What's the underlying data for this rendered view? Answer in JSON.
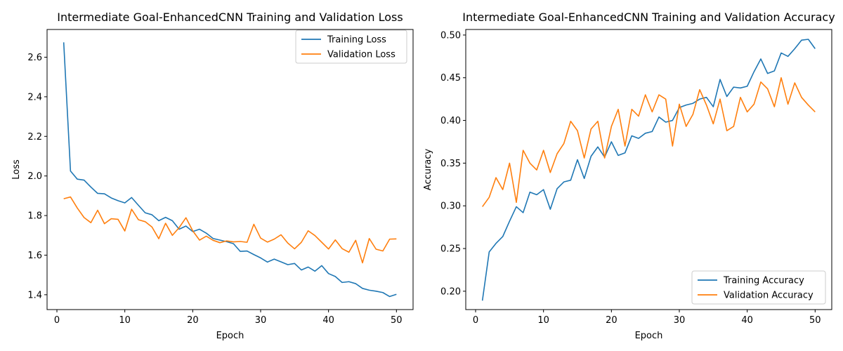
{
  "chart_data": [
    {
      "type": "line",
      "title": "Intermediate Goal-EnhancedCNN Training and Validation Loss",
      "xlabel": "Epoch",
      "ylabel": "Loss",
      "xlim": [
        -1.45,
        52.45
      ],
      "ylim": [
        1.325,
        2.74
      ],
      "xticks": [
        0,
        10,
        20,
        30,
        40,
        50
      ],
      "yticks": [
        1.4,
        1.6,
        1.8,
        2.0,
        2.2,
        2.4,
        2.6
      ],
      "ytick_decimals": 1,
      "grid": false,
      "legend_position": "upper-right",
      "x": [
        1,
        2,
        3,
        4,
        5,
        6,
        7,
        8,
        9,
        10,
        11,
        12,
        13,
        14,
        15,
        16,
        17,
        18,
        19,
        20,
        21,
        22,
        23,
        24,
        25,
        26,
        27,
        28,
        29,
        30,
        31,
        32,
        33,
        34,
        35,
        36,
        37,
        38,
        39,
        40,
        41,
        42,
        43,
        44,
        45,
        46,
        47,
        48,
        49,
        50
      ],
      "series": [
        {
          "name": "Training Loss",
          "color": "#1f77b4",
          "values": [
            2.675,
            2.025,
            1.984,
            1.979,
            1.944,
            1.912,
            1.91,
            1.889,
            1.875,
            1.864,
            1.891,
            1.852,
            1.814,
            1.804,
            1.774,
            1.791,
            1.774,
            1.731,
            1.747,
            1.719,
            1.731,
            1.711,
            1.684,
            1.676,
            1.668,
            1.658,
            1.619,
            1.621,
            1.603,
            1.586,
            1.565,
            1.58,
            1.566,
            1.552,
            1.558,
            1.525,
            1.54,
            1.519,
            1.547,
            1.507,
            1.492,
            1.462,
            1.466,
            1.456,
            1.432,
            1.423,
            1.418,
            1.411,
            1.391,
            1.402
          ]
        },
        {
          "name": "Validation Loss",
          "color": "#ff7f0e",
          "values": [
            1.885,
            1.894,
            1.838,
            1.79,
            1.764,
            1.827,
            1.759,
            1.784,
            1.781,
            1.722,
            1.832,
            1.779,
            1.769,
            1.742,
            1.683,
            1.761,
            1.7,
            1.739,
            1.789,
            1.723,
            1.676,
            1.696,
            1.675,
            1.663,
            1.672,
            1.667,
            1.669,
            1.665,
            1.756,
            1.686,
            1.666,
            1.681,
            1.703,
            1.661,
            1.632,
            1.665,
            1.723,
            1.699,
            1.665,
            1.631,
            1.677,
            1.633,
            1.615,
            1.675,
            1.561,
            1.684,
            1.63,
            1.621,
            1.681,
            1.682
          ]
        }
      ]
    },
    {
      "type": "line",
      "title": "Intermediate Goal-EnhancedCNN Training and Validation Accuracy",
      "xlabel": "Epoch",
      "ylabel": "Accuracy",
      "xlim": [
        -1.45,
        52.45
      ],
      "ylim": [
        0.1785,
        0.5065
      ],
      "xticks": [
        0,
        10,
        20,
        30,
        40,
        50
      ],
      "yticks": [
        0.2,
        0.25,
        0.3,
        0.35,
        0.4,
        0.45,
        0.5
      ],
      "ytick_decimals": 2,
      "grid": false,
      "legend_position": "lower-right",
      "x": [
        1,
        2,
        3,
        4,
        5,
        6,
        7,
        8,
        9,
        10,
        11,
        12,
        13,
        14,
        15,
        16,
        17,
        18,
        19,
        20,
        21,
        22,
        23,
        24,
        25,
        26,
        27,
        28,
        29,
        30,
        31,
        32,
        33,
        34,
        35,
        36,
        37,
        38,
        39,
        40,
        41,
        42,
        43,
        44,
        45,
        46,
        47,
        48,
        49,
        50
      ],
      "series": [
        {
          "name": "Training Accuracy",
          "color": "#1f77b4",
          "values": [
            0.189,
            0.246,
            0.256,
            0.264,
            0.282,
            0.299,
            0.292,
            0.316,
            0.313,
            0.319,
            0.296,
            0.32,
            0.328,
            0.33,
            0.354,
            0.332,
            0.358,
            0.369,
            0.357,
            0.375,
            0.359,
            0.362,
            0.382,
            0.379,
            0.385,
            0.387,
            0.404,
            0.398,
            0.4,
            0.415,
            0.418,
            0.42,
            0.425,
            0.427,
            0.416,
            0.448,
            0.428,
            0.439,
            0.438,
            0.44,
            0.457,
            0.472,
            0.455,
            0.458,
            0.479,
            0.475,
            0.484,
            0.494,
            0.495,
            0.484
          ]
        },
        {
          "name": "Validation Accuracy",
          "color": "#ff7f0e",
          "values": [
            0.299,
            0.31,
            0.333,
            0.319,
            0.35,
            0.304,
            0.365,
            0.35,
            0.342,
            0.365,
            0.339,
            0.361,
            0.373,
            0.399,
            0.388,
            0.356,
            0.39,
            0.399,
            0.356,
            0.393,
            0.413,
            0.37,
            0.413,
            0.405,
            0.43,
            0.41,
            0.43,
            0.425,
            0.37,
            0.419,
            0.393,
            0.407,
            0.436,
            0.418,
            0.396,
            0.425,
            0.388,
            0.393,
            0.427,
            0.41,
            0.419,
            0.445,
            0.437,
            0.416,
            0.45,
            0.419,
            0.444,
            0.427,
            0.418,
            0.41
          ]
        }
      ]
    }
  ]
}
